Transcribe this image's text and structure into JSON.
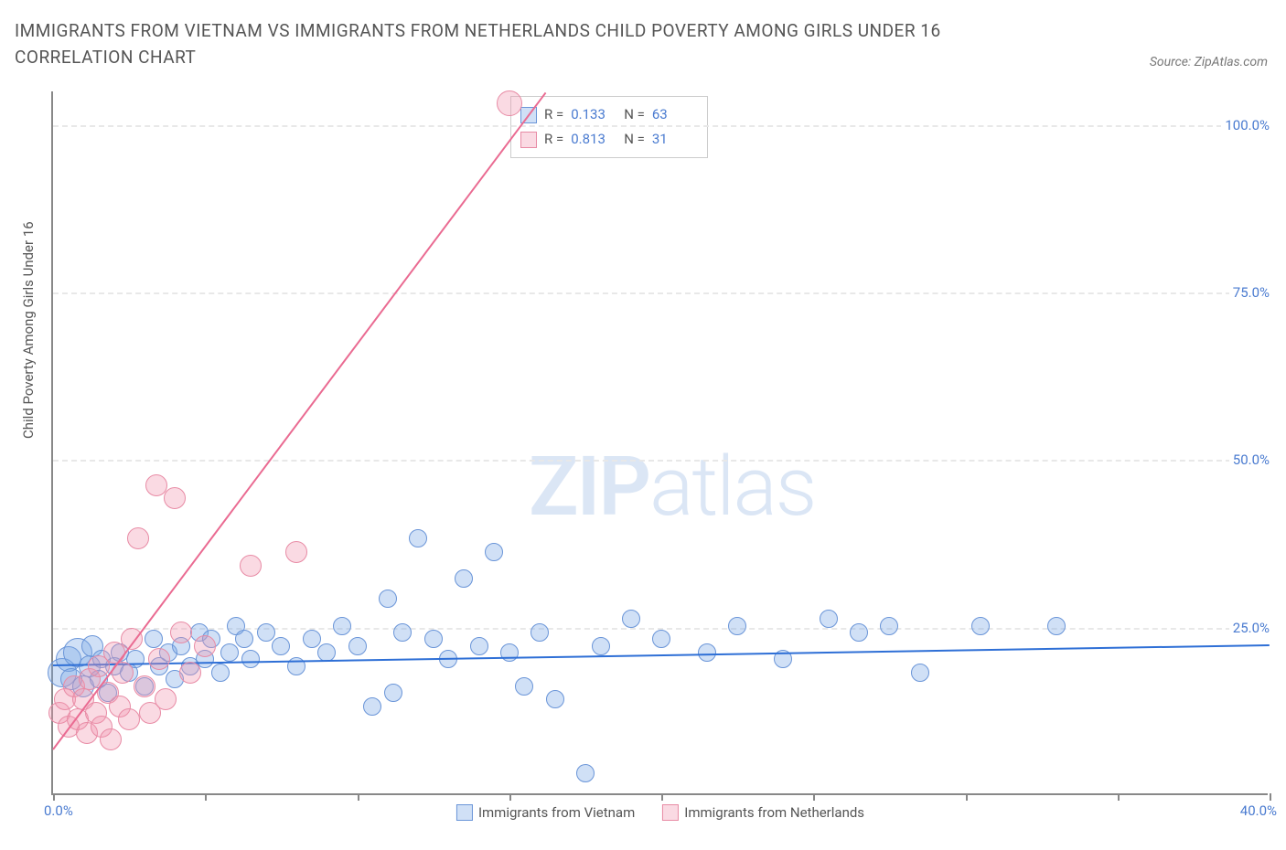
{
  "title": "IMMIGRANTS FROM VIETNAM VS IMMIGRANTS FROM NETHERLANDS CHILD POVERTY AMONG GIRLS UNDER 16 CORRELATION CHART",
  "source_label": "Source: ZipAtlas.com",
  "ylabel": "Child Poverty Among Girls Under 16",
  "watermark_bold": "ZIP",
  "watermark_light": "atlas",
  "chart": {
    "type": "scatter",
    "xlim": [
      0,
      40
    ],
    "ylim": [
      0,
      105
    ],
    "xtick_positions": [
      0,
      5,
      10,
      15,
      20,
      25,
      30,
      35,
      40
    ],
    "xtick_labels_shown": {
      "0": "0.0%",
      "40": "40.0%"
    },
    "ytick_positions": [
      25,
      50,
      75,
      100
    ],
    "ytick_labels": [
      "25.0%",
      "50.0%",
      "75.0%",
      "100.0%"
    ],
    "grid_color": "#e8e8e8",
    "axis_color": "#888888",
    "background_color": "#ffffff"
  },
  "series": [
    {
      "name": "Immigrants from Vietnam",
      "key": "vietnam",
      "fill": "rgba(120,165,230,0.35)",
      "stroke": "#6a95d8",
      "line_color": "#2e6fd6",
      "R": "0.133",
      "N": "63",
      "trend": {
        "x1": 0,
        "y1": 19.5,
        "x2": 40,
        "y2": 22.5
      },
      "marker_radius": 10,
      "points": [
        [
          0.3,
          18,
          16
        ],
        [
          0.5,
          20,
          14
        ],
        [
          0.6,
          17,
          12
        ],
        [
          0.8,
          21,
          16
        ],
        [
          1.0,
          16,
          12
        ],
        [
          1.2,
          19,
          12
        ],
        [
          1.3,
          22,
          12
        ],
        [
          1.5,
          17,
          10
        ],
        [
          1.6,
          20,
          10
        ],
        [
          1.8,
          15,
          10
        ],
        [
          2.0,
          19,
          10
        ],
        [
          2.2,
          21,
          10
        ],
        [
          2.5,
          18,
          10
        ],
        [
          2.7,
          20,
          10
        ],
        [
          3.0,
          16,
          10
        ],
        [
          3.3,
          23,
          10
        ],
        [
          3.5,
          19,
          10
        ],
        [
          3.8,
          21,
          10
        ],
        [
          4.0,
          17,
          10
        ],
        [
          4.2,
          22,
          10
        ],
        [
          4.5,
          19,
          10
        ],
        [
          4.8,
          24,
          10
        ],
        [
          5.0,
          20,
          10
        ],
        [
          5.2,
          23,
          10
        ],
        [
          5.5,
          18,
          10
        ],
        [
          5.8,
          21,
          10
        ],
        [
          6.0,
          25,
          10
        ],
        [
          6.3,
          23,
          10
        ],
        [
          6.5,
          20,
          10
        ],
        [
          7.0,
          24,
          10
        ],
        [
          7.5,
          22,
          10
        ],
        [
          8.0,
          19,
          10
        ],
        [
          8.5,
          23,
          10
        ],
        [
          9.0,
          21,
          10
        ],
        [
          9.5,
          25,
          10
        ],
        [
          10.0,
          22,
          10
        ],
        [
          10.5,
          13,
          10
        ],
        [
          11.0,
          29,
          10
        ],
        [
          11.2,
          15,
          10
        ],
        [
          11.5,
          24,
          10
        ],
        [
          12.0,
          38,
          10
        ],
        [
          12.5,
          23,
          10
        ],
        [
          13.0,
          20,
          10
        ],
        [
          13.5,
          32,
          10
        ],
        [
          14.0,
          22,
          10
        ],
        [
          14.5,
          36,
          10
        ],
        [
          15.0,
          21,
          10
        ],
        [
          15.5,
          16,
          10
        ],
        [
          16.0,
          24,
          10
        ],
        [
          16.5,
          14,
          10
        ],
        [
          17.5,
          3,
          10
        ],
        [
          18.0,
          22,
          10
        ],
        [
          19.0,
          26,
          10
        ],
        [
          20.0,
          23,
          10
        ],
        [
          21.5,
          21,
          10
        ],
        [
          22.5,
          25,
          10
        ],
        [
          24.0,
          20,
          10
        ],
        [
          25.5,
          26,
          10
        ],
        [
          26.5,
          24,
          10
        ],
        [
          27.5,
          25,
          10
        ],
        [
          28.5,
          18,
          10
        ],
        [
          30.5,
          25,
          10
        ],
        [
          33.0,
          25,
          10
        ]
      ]
    },
    {
      "name": "Immigrants from Netherlands",
      "key": "netherlands",
      "fill": "rgba(240,150,175,0.35)",
      "stroke": "#e88ba5",
      "line_color": "#ea6b92",
      "R": "0.813",
      "N": "31",
      "trend": {
        "x1": 0,
        "y1": 7,
        "x2": 16.2,
        "y2": 105
      },
      "marker_radius": 10,
      "points": [
        [
          0.2,
          12,
          12
        ],
        [
          0.4,
          14,
          12
        ],
        [
          0.5,
          10,
          12
        ],
        [
          0.7,
          16,
          12
        ],
        [
          0.8,
          11,
          12
        ],
        [
          1.0,
          14,
          12
        ],
        [
          1.1,
          9,
          12
        ],
        [
          1.2,
          17,
          12
        ],
        [
          1.4,
          12,
          12
        ],
        [
          1.5,
          19,
          12
        ],
        [
          1.6,
          10,
          12
        ],
        [
          1.8,
          15,
          12
        ],
        [
          1.9,
          8,
          12
        ],
        [
          2.0,
          21,
          12
        ],
        [
          2.2,
          13,
          12
        ],
        [
          2.3,
          18,
          12
        ],
        [
          2.5,
          11,
          12
        ],
        [
          2.6,
          23,
          12
        ],
        [
          2.8,
          38,
          12
        ],
        [
          3.0,
          16,
          12
        ],
        [
          3.2,
          12,
          12
        ],
        [
          3.4,
          46,
          12
        ],
        [
          3.5,
          20,
          12
        ],
        [
          3.7,
          14,
          12
        ],
        [
          4.0,
          44,
          12
        ],
        [
          4.2,
          24,
          12
        ],
        [
          4.5,
          18,
          12
        ],
        [
          5.0,
          22,
          12
        ],
        [
          6.5,
          34,
          12
        ],
        [
          8.0,
          36,
          12
        ],
        [
          15.0,
          103,
          14
        ]
      ]
    }
  ],
  "legend_top": {
    "r_label": "R =",
    "n_label": "N ="
  },
  "legend_bottom": [
    {
      "swatch_fill": "rgba(120,165,230,0.35)",
      "swatch_stroke": "#6a95d8",
      "label": "Immigrants from Vietnam"
    },
    {
      "swatch_fill": "rgba(240,150,175,0.35)",
      "swatch_stroke": "#e88ba5",
      "label": "Immigrants from Netherlands"
    }
  ]
}
